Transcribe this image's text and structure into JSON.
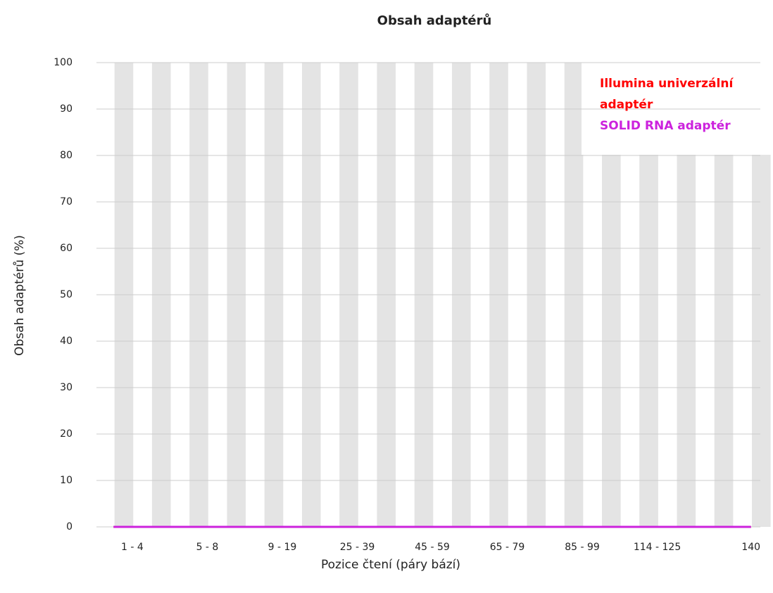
{
  "chart_data": {
    "type": "line",
    "title": "Obsah adaptérů",
    "x_label": "Pozice čtení (páry bází)",
    "y_label": "Obsah adaptérů (%)",
    "categories": [
      null,
      "1 - 4",
      null,
      null,
      null,
      "5 - 8",
      null,
      null,
      null,
      "9 - 19",
      null,
      null,
      null,
      "25 - 39",
      null,
      null,
      null,
      "45 - 59",
      null,
      null,
      null,
      "65 - 79",
      null,
      null,
      null,
      "85 - 99",
      null,
      null,
      null,
      "114 -  125",
      null,
      null,
      null,
      null,
      "140"
    ],
    "series": [
      {
        "name": "Illumina univerzální adaptér",
        "color": "#ff0000",
        "values": [
          0,
          0,
          0,
          0,
          0,
          0,
          0,
          0,
          0,
          0,
          0,
          0,
          0,
          0,
          0,
          0,
          0,
          0,
          0,
          0,
          0,
          0,
          0,
          0,
          0,
          0,
          0,
          0,
          0,
          0,
          0,
          0,
          0,
          0,
          0
        ]
      },
      {
        "name": "SOLID RNA adaptér",
        "color": "#cc22dd",
        "values": [
          0,
          0,
          0,
          0,
          0,
          0,
          0,
          0,
          0,
          0,
          0,
          0,
          0,
          0,
          0,
          0,
          0,
          0,
          0,
          0,
          0,
          0,
          0,
          0,
          0,
          0,
          0,
          0,
          0,
          0,
          0,
          0,
          0,
          0,
          0
        ]
      }
    ],
    "ylim": [
      0,
      100
    ],
    "yticks": [
      0,
      10,
      20,
      30,
      40,
      50,
      60,
      70,
      80,
      90,
      100
    ],
    "grid": true
  }
}
